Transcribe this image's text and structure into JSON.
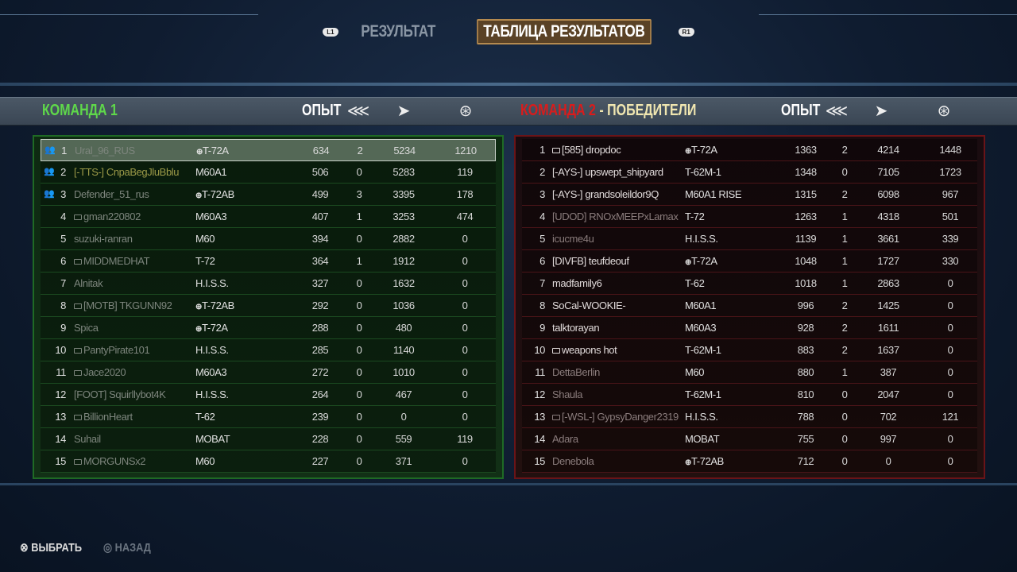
{
  "tabs": {
    "left_button": "L1",
    "right_button": "R1",
    "items": [
      {
        "label": "РЕЗУЛЬТАТ",
        "active": false
      },
      {
        "label": "ТАБЛИЦА РЕЗУЛЬТАТОВ",
        "active": true
      }
    ]
  },
  "colors": {
    "team1": "#5fd84a",
    "team2": "#d81c1c",
    "winners": "#f0e6b0",
    "selected_tab_border": "#b48a50"
  },
  "team1": {
    "title": "КОМАНДА 1",
    "exp_label": "ОПЫТ",
    "col_icons": [
      "kills-icon",
      "damage-icon",
      "assist-icon"
    ],
    "rows": [
      {
        "rank": "1",
        "name": "Ural_96_RUS",
        "tank": "T-72A",
        "tank_emblem": true,
        "exp": "634",
        "kills": "2",
        "damage": "5234",
        "assist": "1210",
        "platoon": true,
        "selected": true,
        "style": "dim"
      },
      {
        "rank": "2",
        "name": "[-TTS-] CnpaBegJluBblu",
        "tank": "M60A1",
        "exp": "506",
        "kills": "0",
        "damage": "5283",
        "assist": "119",
        "platoon": true,
        "style": "clan"
      },
      {
        "rank": "3",
        "name": "Defender_51_rus",
        "tank": "T-72AB",
        "tank_emblem": true,
        "exp": "499",
        "kills": "3",
        "damage": "3395",
        "assist": "178",
        "platoon": true,
        "style": "dim"
      },
      {
        "rank": "4",
        "name": "gman220802",
        "tank": "M60A3",
        "exp": "407",
        "kills": "1",
        "damage": "3253",
        "assist": "474",
        "monitor": true,
        "style": "dim"
      },
      {
        "rank": "5",
        "name": "suzuki-ranran",
        "tank": "M60",
        "exp": "394",
        "kills": "0",
        "damage": "2882",
        "assist": "0",
        "style": "dim"
      },
      {
        "rank": "6",
        "name": "MIDDMEDHAT",
        "tank": "T-72",
        "exp": "364",
        "kills": "1",
        "damage": "1912",
        "assist": "0",
        "monitor": true,
        "style": "dim"
      },
      {
        "rank": "7",
        "name": "Alnitak",
        "tank": "H.I.S.S.",
        "exp": "327",
        "kills": "0",
        "damage": "1632",
        "assist": "0",
        "style": "dim"
      },
      {
        "rank": "8",
        "name": "[MOTB] TKGUNN92",
        "tank": "T-72AB",
        "tank_emblem": true,
        "exp": "292",
        "kills": "0",
        "damage": "1036",
        "assist": "0",
        "monitor": true,
        "style": "dim"
      },
      {
        "rank": "9",
        "name": "Spica",
        "tank": "T-72A",
        "tank_emblem": true,
        "exp": "288",
        "kills": "0",
        "damage": "480",
        "assist": "0",
        "style": "dim"
      },
      {
        "rank": "10",
        "name": "PantyPirate101",
        "tank": "H.I.S.S.",
        "exp": "285",
        "kills": "0",
        "damage": "1140",
        "assist": "0",
        "monitor": true,
        "style": "dim"
      },
      {
        "rank": "11",
        "name": "Jace2020",
        "tank": "M60A3",
        "exp": "272",
        "kills": "0",
        "damage": "1010",
        "assist": "0",
        "monitor": true,
        "style": "dim"
      },
      {
        "rank": "12",
        "name": "[FOOT] Squirllybot4K",
        "tank": "H.I.S.S.",
        "exp": "264",
        "kills": "0",
        "damage": "467",
        "assist": "0",
        "style": "dim"
      },
      {
        "rank": "13",
        "name": "BillionHeart",
        "tank": "T-62",
        "exp": "239",
        "kills": "0",
        "damage": "0",
        "assist": "0",
        "monitor": true,
        "style": "dim"
      },
      {
        "rank": "14",
        "name": "Suhail",
        "tank": "MOBAT",
        "exp": "228",
        "kills": "0",
        "damage": "559",
        "assist": "119",
        "style": "dim"
      },
      {
        "rank": "15",
        "name": "MORGUNSx2",
        "tank": "M60",
        "exp": "227",
        "kills": "0",
        "damage": "371",
        "assist": "0",
        "monitor": true,
        "style": "dim"
      }
    ]
  },
  "team2": {
    "title": "КОМАНДА 2",
    "winners_label": " - ПОБЕДИТЕЛИ",
    "exp_label": "ОПЫТ",
    "col_icons": [
      "kills-icon",
      "damage-icon",
      "assist-icon"
    ],
    "rows": [
      {
        "rank": "1",
        "name": "[585] dropdoc",
        "tank": "T-72A",
        "tank_emblem": true,
        "exp": "1363",
        "kills": "2",
        "damage": "4214",
        "assist": "1448",
        "monitor": true,
        "style": "bright"
      },
      {
        "rank": "2",
        "name": "[-AYS-] upswept_shipyard",
        "tank": "T-62M-1",
        "exp": "1348",
        "kills": "0",
        "damage": "7105",
        "assist": "1723",
        "style": "bright"
      },
      {
        "rank": "3",
        "name": "[-AYS-] grandsoleildor9Q",
        "tank": "M60A1 RISE",
        "exp": "1315",
        "kills": "2",
        "damage": "6098",
        "assist": "967",
        "style": "bright"
      },
      {
        "rank": "4",
        "name": "[UDOD] RNOxMEEPxLamax",
        "tank": "T-72",
        "exp": "1263",
        "kills": "1",
        "damage": "4318",
        "assist": "501",
        "style": "dim"
      },
      {
        "rank": "5",
        "name": "icucme4u",
        "tank": "H.I.S.S.",
        "exp": "1139",
        "kills": "1",
        "damage": "3661",
        "assist": "339",
        "style": "dim"
      },
      {
        "rank": "6",
        "name": "[DIVFB] teufdeouf",
        "tank": "T-72A",
        "tank_emblem": true,
        "exp": "1048",
        "kills": "1",
        "damage": "1727",
        "assist": "330",
        "style": "bright"
      },
      {
        "rank": "7",
        "name": "madfamily6",
        "tank": "T-62",
        "exp": "1018",
        "kills": "1",
        "damage": "2863",
        "assist": "0",
        "style": "bright"
      },
      {
        "rank": "8",
        "name": "SoCal-WOOKIE-",
        "tank": "M60A1",
        "exp": "996",
        "kills": "2",
        "damage": "1425",
        "assist": "0",
        "style": "bright"
      },
      {
        "rank": "9",
        "name": "talktorayan",
        "tank": "M60A3",
        "exp": "928",
        "kills": "2",
        "damage": "1611",
        "assist": "0",
        "style": "bright"
      },
      {
        "rank": "10",
        "name": "weapons hot",
        "tank": "T-62M-1",
        "exp": "883",
        "kills": "2",
        "damage": "1637",
        "assist": "0",
        "monitor": true,
        "style": "bright"
      },
      {
        "rank": "11",
        "name": "DettaBerlin",
        "tank": "M60",
        "exp": "880",
        "kills": "1",
        "damage": "387",
        "assist": "0",
        "style": "dim"
      },
      {
        "rank": "12",
        "name": "Shaula",
        "tank": "T-62M-1",
        "exp": "810",
        "kills": "0",
        "damage": "2047",
        "assist": "0",
        "style": "dim"
      },
      {
        "rank": "13",
        "name": "[-WSL-] GypsyDanger2319",
        "tank": "H.I.S.S.",
        "exp": "788",
        "kills": "0",
        "damage": "702",
        "assist": "121",
        "monitor": true,
        "style": "dim"
      },
      {
        "rank": "14",
        "name": "Adara",
        "tank": "MOBAT",
        "exp": "755",
        "kills": "0",
        "damage": "997",
        "assist": "0",
        "style": "dim"
      },
      {
        "rank": "15",
        "name": "Denebola",
        "tank": "T-72AB",
        "tank_emblem": true,
        "exp": "712",
        "kills": "0",
        "damage": "0",
        "assist": "0",
        "style": "dim"
      }
    ]
  },
  "footer": {
    "select_label": "ВЫБРАТЬ",
    "back_label": "НАЗАД"
  }
}
